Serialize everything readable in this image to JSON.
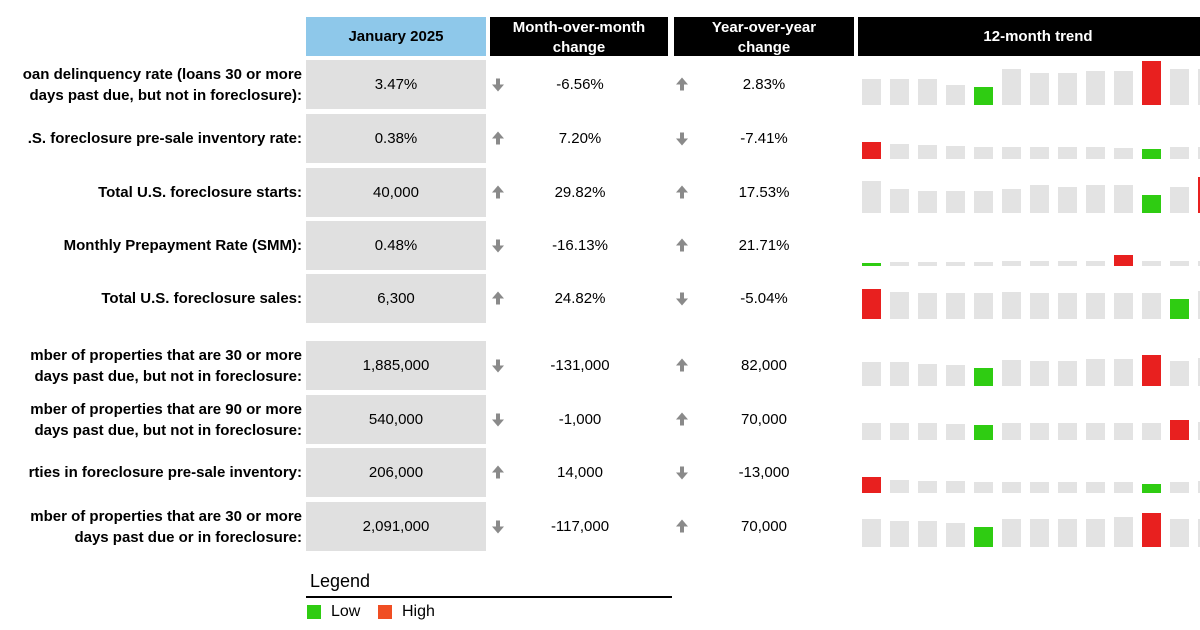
{
  "header": {
    "columns": [
      [
        "January 2025"
      ],
      [
        "Month-over-month",
        "change"
      ],
      [
        "Year-over-year",
        "change"
      ],
      [
        "12-month trend"
      ]
    ]
  },
  "rows": [
    {
      "label": [
        "oan delinquency rate (loans 30 or more",
        "days past due, but not in foreclosure):"
      ],
      "value": "3.47%",
      "mom": "-6.56%",
      "yoy": "2.83%",
      "trend": [
        26,
        26,
        26,
        20,
        18,
        36,
        32,
        32,
        34,
        34,
        44,
        36,
        36
      ]
    },
    {
      "label": [
        ".S. foreclosure pre-sale inventory rate:"
      ],
      "value": "0.38%",
      "mom": "7.20%",
      "yoy": "-7.41%",
      "trend": [
        17,
        15,
        14,
        13,
        12,
        12,
        12,
        12,
        12,
        11,
        10,
        12,
        12
      ]
    },
    {
      "label": [
        "Total U.S. foreclosure starts:"
      ],
      "value": "40,000",
      "mom": "29.82%",
      "yoy": "17.53%",
      "trend": [
        32,
        24,
        22,
        22,
        22,
        24,
        28,
        26,
        28,
        28,
        18,
        26,
        36
      ]
    },
    {
      "label": [
        "Monthly Prepayment Rate (SMM):"
      ],
      "value": "0.48%",
      "mom": "-16.13%",
      "yoy": "21.71%",
      "trend": [
        3,
        4,
        4,
        4,
        4,
        5,
        5,
        5,
        5,
        11,
        5,
        5,
        5
      ]
    },
    {
      "label": [
        "Total U.S. foreclosure sales:"
      ],
      "value": "6,300",
      "mom": "24.82%",
      "yoy": "-5.04%",
      "trend": [
        30,
        27,
        26,
        26,
        26,
        27,
        26,
        26,
        26,
        26,
        26,
        20,
        28
      ]
    },
    {
      "label": [
        "mber of properties that are 30 or more",
        "days past due, but not in foreclosure:"
      ],
      "value": "1,885,000",
      "mom": "-131,000",
      "yoy": "82,000",
      "trend": [
        24,
        24,
        22,
        21,
        18,
        26,
        25,
        25,
        27,
        27,
        31,
        25,
        28
      ]
    },
    {
      "label": [
        "mber of properties that are 90 or more",
        "days past due, but not in foreclosure:"
      ],
      "value": "540,000",
      "mom": "-1,000",
      "yoy": "70,000",
      "trend": [
        17,
        17,
        17,
        16,
        15,
        17,
        17,
        17,
        17,
        17,
        17,
        20,
        18
      ]
    },
    {
      "label": [
        "rties in foreclosure pre-sale inventory:"
      ],
      "value": "206,000",
      "mom": "14,000",
      "yoy": "-13,000",
      "trend": [
        16,
        13,
        12,
        12,
        11,
        11,
        11,
        11,
        11,
        11,
        9,
        11,
        12
      ]
    },
    {
      "label": [
        "mber of properties that are 30 or more",
        "days past due or in foreclosure:"
      ],
      "value": "2,091,000",
      "mom": "-117,000",
      "yoy": "70,000",
      "trend": [
        28,
        26,
        26,
        24,
        20,
        28,
        28,
        28,
        28,
        30,
        34,
        28,
        28
      ]
    }
  ],
  "trend_style": {
    "bar_color": "#e3e3e3",
    "low_color": "#2fcc12",
    "high_color": "#e8201f"
  },
  "legend": {
    "title": "Legend",
    "items": [
      {
        "label": "Low",
        "color": "#2fcc12"
      },
      {
        "label": "High",
        "color": "#f04e23"
      }
    ]
  }
}
